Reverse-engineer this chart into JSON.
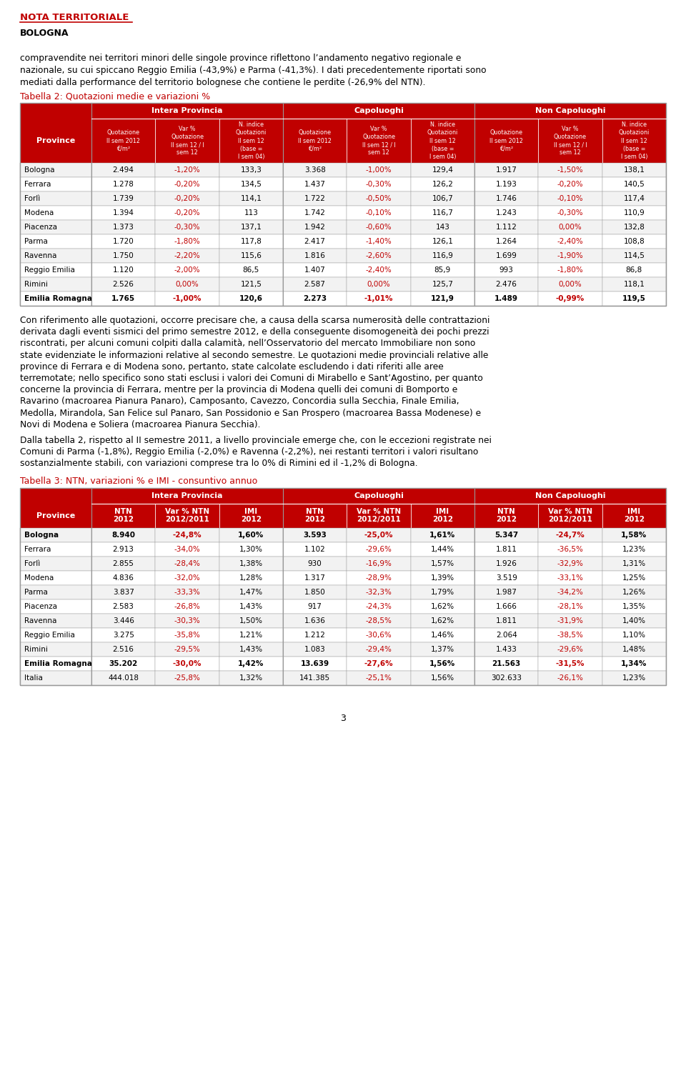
{
  "header_text": "NOTA TERRITORIALE",
  "subheader_text": "BOLOGNA",
  "intro_text1": "compravendite nei territori minori delle singole province riflettono l’andamento negativo regionale e",
  "intro_text2": "nazionale, su cui spiccano Reggio Emilia (-43,9%) e Parma (-41,3%). I dati precedentemente riportati sono",
  "intro_text3": "mediati dalla performance del territorio bolognese che contiene le perdite (-26,9% del NTN).",
  "table2_title": "Tabella 2: Quotazioni medie e variazioni %",
  "table2_col_groups": [
    "Intera Provincia",
    "Capoluoghi",
    "Non Capoluoghi"
  ],
  "table2_col_headers": [
    "Quotazione\nII sem 2012\n€/m²",
    "Var %\nQuotazione\nII sem 12 / I\nsem 12",
    "N. indice\nQuotazioni\nII sem 12\n(base =\nI sem 04)",
    "Quotazione\nII sem 2012\n€/m²",
    "Var %\nQuotazione\nII sem 12 / I\nsem 12",
    "N. indice\nQuotazioni\nII sem 12\n(base =\nI sem 04)",
    "Quotazione\nII sem 2012\n€/m²",
    "Var %\nQuotazione\nII sem 12 / I\nsem 12",
    "N. indice\nQuotazioni\nII sem 12\n(base =\nI sem 04)"
  ],
  "table2_provinces": [
    "Bologna",
    "Ferrara",
    "Forlì",
    "Modena",
    "Piacenza",
    "Parma",
    "Ravenna",
    "Reggio Emilia",
    "Rimini",
    "Emilia Romagna"
  ],
  "table2_bold": [
    false,
    false,
    false,
    false,
    false,
    false,
    false,
    false,
    false,
    true
  ],
  "table2_data": [
    [
      "2.494",
      "-1,20%",
      "133,3",
      "3.368",
      "-1,00%",
      "129,4",
      "1.917",
      "-1,50%",
      "138,1"
    ],
    [
      "1.278",
      "-0,20%",
      "134,5",
      "1.437",
      "-0,30%",
      "126,2",
      "1.193",
      "-0,20%",
      "140,5"
    ],
    [
      "1.739",
      "-0,20%",
      "114,1",
      "1.722",
      "-0,50%",
      "106,7",
      "1.746",
      "-0,10%",
      "117,4"
    ],
    [
      "1.394",
      "-0,20%",
      "113",
      "1.742",
      "-0,10%",
      "116,7",
      "1.243",
      "-0,30%",
      "110,9"
    ],
    [
      "1.373",
      "-0,30%",
      "137,1",
      "1.942",
      "-0,60%",
      "143",
      "1.112",
      "0,00%",
      "132,8"
    ],
    [
      "1.720",
      "-1,80%",
      "117,8",
      "2.417",
      "-1,40%",
      "126,1",
      "1.264",
      "-2,40%",
      "108,8"
    ],
    [
      "1.750",
      "-2,20%",
      "115,6",
      "1.816",
      "-2,60%",
      "116,9",
      "1.699",
      "-1,90%",
      "114,5"
    ],
    [
      "1.120",
      "-2,00%",
      "86,5",
      "1.407",
      "-2,40%",
      "85,9",
      "993",
      "-1,80%",
      "86,8"
    ],
    [
      "2.526",
      "0,00%",
      "121,5",
      "2.587",
      "0,00%",
      "125,7",
      "2.476",
      "0,00%",
      "118,1"
    ],
    [
      "1.765",
      "-1,00%",
      "120,6",
      "2.273",
      "-1,01%",
      "121,9",
      "1.489",
      "-0,99%",
      "119,5"
    ]
  ],
  "middle_text": [
    "Con riferimento alle quotazioni, occorre precisare che, a causa della scarsa numerosità delle contrattazioni",
    "derivata dagli eventi sismici del primo semestre 2012, e della conseguente disomogeneità dei pochi prezzi",
    "riscontrati, per alcuni comuni colpiti dalla calamità, nell’Osservatorio del mercato Immobiliare non sono",
    "state evidenziate le informazioni relative al secondo semestre. Le quotazioni medie provinciali relative alle",
    "province di Ferrara e di Modena sono, pertanto, state calcolate escludendo i dati riferiti alle aree",
    "terremotate; nello specifico sono stati esclusi i valori dei Comuni di Mirabello e Sant’Agostino, per quanto",
    "concerne la provincia di Ferrara, mentre per la provincia di Modena quelli dei comuni di Bomporto e",
    "Ravarino (macroarea Pianura Panaro), Camposanto, Cavezzo, Concordia sulla Secchia, Finale Emilia,",
    "Medolla, Mirandola, San Felice sul Panaro, San Possidonio e San Prospero (macroarea Bassa Modenese) e",
    "Novi di Modena e Soliera (macroarea Pianura Secchia).",
    "",
    "Dalla tabella 2, rispetto al II semestre 2011, a livello provinciale emerge che, con le eccezioni registrate nei",
    "Comuni di Parma (-1,8%), Reggio Emilia (-2,0%) e Ravenna (-2,2%), nei restanti territori i valori risultano",
    "sostanzialmente stabili, con variazioni comprese tra lo 0% di Rimini ed il -1,2% di Bologna."
  ],
  "table3_title": "Tabella 3: NTN, variazioni % e IMI - consuntivo annuo",
  "table3_col_groups": [
    "Intera Provincia",
    "Capoluoghi",
    "Non Capoluoghi"
  ],
  "table3_col_headers": [
    "NTN\n2012",
    "Var % NTN\n2012/2011",
    "IMI\n2012",
    "NTN\n2012",
    "Var % NTN\n2012/2011",
    "IMI\n2012",
    "NTN\n2012",
    "Var % NTN\n2012/2011",
    "IMI\n2012"
  ],
  "table3_provinces": [
    "Bologna",
    "Ferrara",
    "Forlì",
    "Modena",
    "Parma",
    "Piacenza",
    "Ravenna",
    "Reggio Emilia",
    "Rimini",
    "Emilia Romagna",
    "Italia"
  ],
  "table3_bold": [
    true,
    false,
    false,
    false,
    false,
    false,
    false,
    false,
    false,
    true,
    false
  ],
  "table3_data": [
    [
      "8.940",
      "-24,8%",
      "1,60%",
      "3.593",
      "-25,0%",
      "1,61%",
      "5.347",
      "-24,7%",
      "1,58%"
    ],
    [
      "2.913",
      "-34,0%",
      "1,30%",
      "1.102",
      "-29,6%",
      "1,44%",
      "1.811",
      "-36,5%",
      "1,23%"
    ],
    [
      "2.855",
      "-28,4%",
      "1,38%",
      "930",
      "-16,9%",
      "1,57%",
      "1.926",
      "-32,9%",
      "1,31%"
    ],
    [
      "4.836",
      "-32,0%",
      "1,28%",
      "1.317",
      "-28,9%",
      "1,39%",
      "3.519",
      "-33,1%",
      "1,25%"
    ],
    [
      "3.837",
      "-33,3%",
      "1,47%",
      "1.850",
      "-32,3%",
      "1,79%",
      "1.987",
      "-34,2%",
      "1,26%"
    ],
    [
      "2.583",
      "-26,8%",
      "1,43%",
      "917",
      "-24,3%",
      "1,62%",
      "1.666",
      "-28,1%",
      "1,35%"
    ],
    [
      "3.446",
      "-30,3%",
      "1,50%",
      "1.636",
      "-28,5%",
      "1,62%",
      "1.811",
      "-31,9%",
      "1,40%"
    ],
    [
      "3.275",
      "-35,8%",
      "1,21%",
      "1.212",
      "-30,6%",
      "1,46%",
      "2.064",
      "-38,5%",
      "1,10%"
    ],
    [
      "2.516",
      "-29,5%",
      "1,43%",
      "1.083",
      "-29,4%",
      "1,37%",
      "1.433",
      "-29,6%",
      "1,48%"
    ],
    [
      "35.202",
      "-30,0%",
      "1,42%",
      "13.639",
      "-27,6%",
      "1,56%",
      "21.563",
      "-31,5%",
      "1,34%"
    ],
    [
      "444.018",
      "-25,8%",
      "1,32%",
      "141.385",
      "-25,1%",
      "1,56%",
      "302.633",
      "-26,1%",
      "1,23%"
    ]
  ],
  "page_number": "3",
  "RED": "#C00000",
  "WHITE": "#FFFFFF",
  "BLACK": "#000000",
  "LIGHT_GRAY": "#F2F2F2",
  "BORDER": "#999999"
}
